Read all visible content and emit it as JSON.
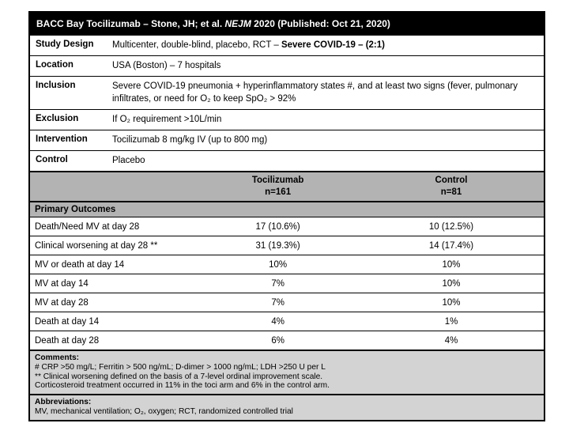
{
  "title": {
    "pre": "BACC Bay Tocilizumab – Stone, JH; et al. ",
    "journal": "NEJM",
    "post": " 2020 (Published: Oct 21, 2020)"
  },
  "info": {
    "study_design": {
      "label": "Study Design",
      "value": "Multicenter, double-blind, placebo, RCT – ",
      "value_bold": "Severe COVID-19 – (2:1)"
    },
    "location": {
      "label": "Location",
      "value": "USA (Boston) – 7 hospitals"
    },
    "inclusion": {
      "label": "Inclusion",
      "value": "Severe COVID-19 pneumonia + hyperinflammatory states #, and at least two signs (fever, pulmonary infiltrates, or need for O₂ to keep SpO₂ > 92%"
    },
    "exclusion": {
      "label": "Exclusion",
      "value": "If O₂ requirement >10L/min"
    },
    "intervention": {
      "label": "Intervention",
      "value": "Tocilizumab 8 mg/kg IV (up to 800 mg)"
    },
    "control": {
      "label": "Control",
      "value": "Placebo"
    }
  },
  "columns": {
    "tocilizumab": {
      "name": "Tocilizumab",
      "n": "n=161"
    },
    "control": {
      "name": "Control",
      "n": "n=81"
    }
  },
  "section_header": "Primary Outcomes",
  "outcomes": [
    {
      "label": "Death/Need MV at day 28",
      "tocilizumab": "17 (10.6%)",
      "control": "10 (12.5%)"
    },
    {
      "label": "Clinical worsening at day 28 **",
      "tocilizumab": "31 (19.3%)",
      "control": "14 (17.4%)"
    },
    {
      "label": "MV or death at day 14",
      "tocilizumab": "10%",
      "control": "10%"
    },
    {
      "label": "MV at day 14",
      "tocilizumab": "7%",
      "control": "10%"
    },
    {
      "label": "MV at day 28",
      "tocilizumab": "7%",
      "control": "10%"
    },
    {
      "label": "Death at day 14",
      "tocilizumab": "4%",
      "control": "1%"
    },
    {
      "label": "Death at day 28",
      "tocilizumab": "6%",
      "control": "4%"
    }
  ],
  "comments": {
    "heading": "Comments:",
    "lines": [
      "# CRP >50 mg/L; Ferritin > 500 ng/mL; D-dimer > 1000 ng/mL; LDH >250 U per L",
      "** Clinical worsening defined on the basis of a 7-level ordinal improvement scale.",
      "Corticosteroid treatment occurred in 11% in the toci arm and 6% in the control arm."
    ]
  },
  "abbreviations": {
    "heading": "Abbreviations:",
    "line": "MV, mechanical ventilation; O₂, oxygen; RCT, randomized controlled trial"
  },
  "colors": {
    "title_bar_bg": "#000000",
    "title_bar_text": "#ffffff",
    "header_band_gray": "#b3b3b3",
    "note_block_gray": "#d3d3d3",
    "border": "#000000"
  }
}
